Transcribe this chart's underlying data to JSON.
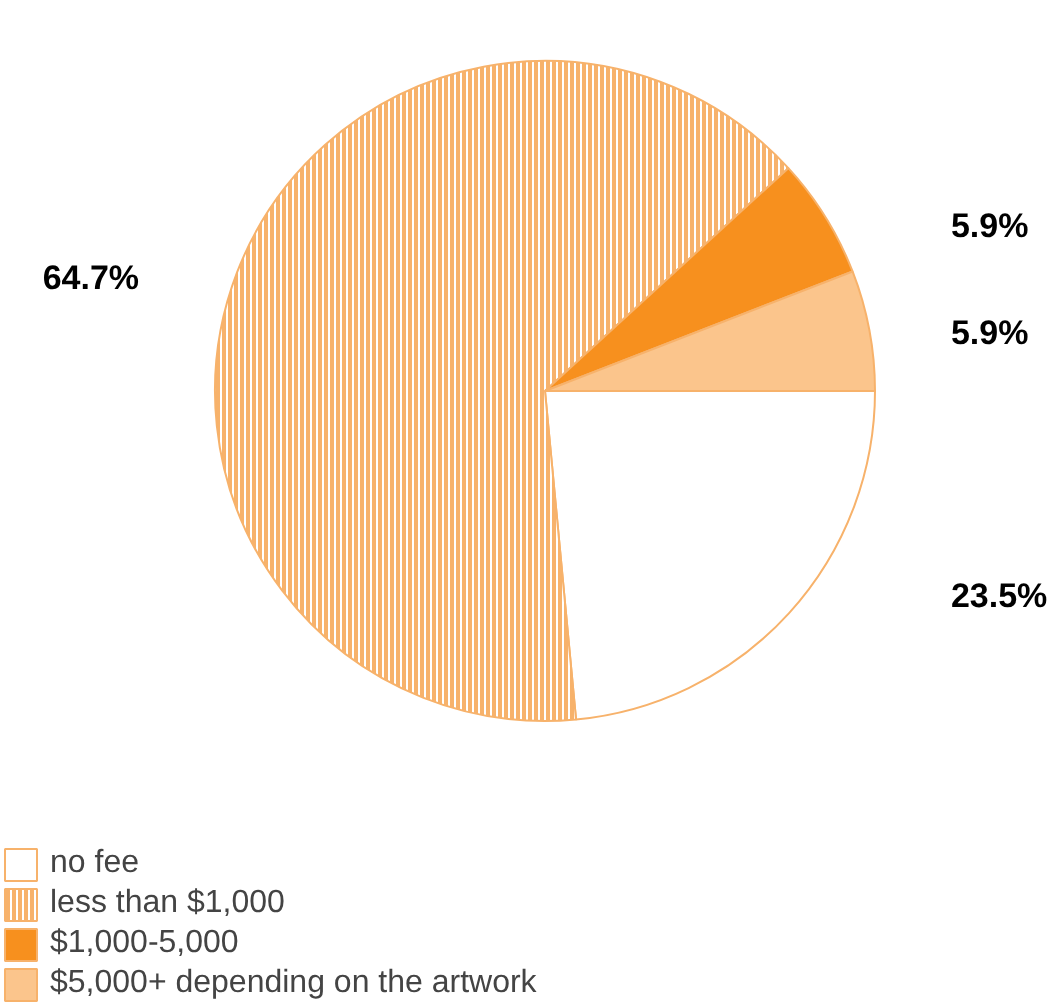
{
  "chart_data": {
    "type": "pie",
    "categories": [
      "no fee",
      "less than $1,000",
      "$1,000-5,000",
      "$5,000+ depending on the artwork"
    ],
    "values": [
      23.5,
      64.7,
      5.9,
      5.9
    ],
    "colors": [
      "#ffffff",
      "#f7b26b",
      "#f7901e",
      "#fbc58c"
    ],
    "value_labels": [
      "23.5%",
      "64.7%",
      "5.9%",
      "5.9%"
    ],
    "legend": "bottom"
  }
}
